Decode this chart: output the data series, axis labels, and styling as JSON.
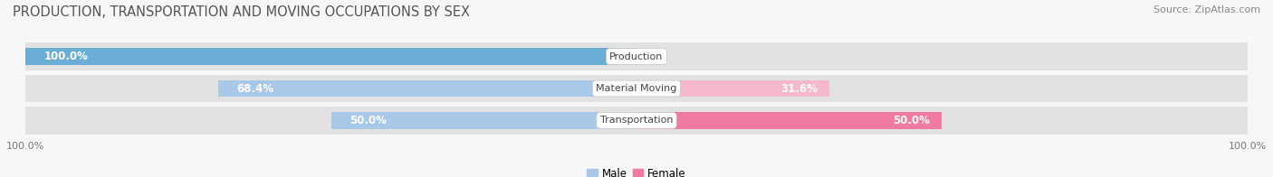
{
  "title": "PRODUCTION, TRANSPORTATION AND MOVING OCCUPATIONS BY SEX",
  "source": "Source: ZipAtlas.com",
  "categories": [
    "Production",
    "Material Moving",
    "Transportation"
  ],
  "male_values": [
    100.0,
    68.4,
    50.0
  ],
  "female_values": [
    0.0,
    31.6,
    50.0
  ],
  "male_color_production": "#6aaed6",
  "male_color_other": "#a8c8e8",
  "female_color_dark": "#f07aa0",
  "female_color_light": "#f5b8cc",
  "row_bg_color": "#e2e2e2",
  "fig_bg_color": "#f7f7f7",
  "title_color": "#555555",
  "source_color": "#888888",
  "label_white": "#ffffff",
  "label_dark": "#777777",
  "title_fontsize": 10.5,
  "source_fontsize": 8,
  "bar_label_fontsize": 8.5,
  "category_fontsize": 8,
  "legend_fontsize": 8.5,
  "axis_label_fontsize": 8,
  "figsize": [
    14.06,
    1.96
  ],
  "dpi": 100
}
